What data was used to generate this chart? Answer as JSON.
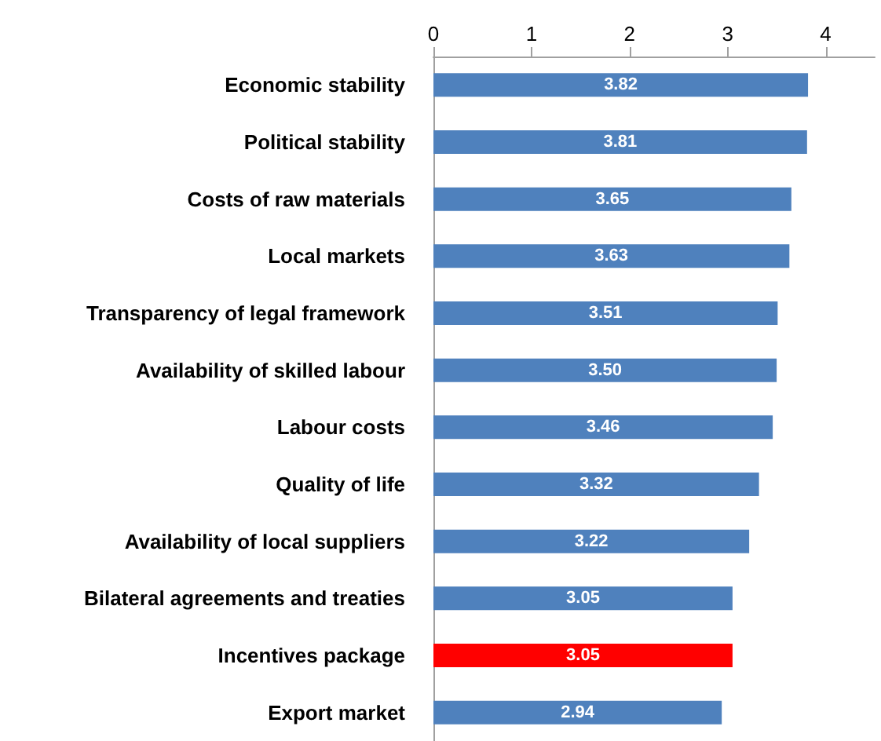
{
  "chart_data": {
    "type": "bar",
    "orientation": "horizontal",
    "categories": [
      "Economic stability",
      "Political stability",
      "Costs of raw materials",
      "Local markets",
      "Transparency of legal framework",
      "Availability of skilled labour",
      "Labour costs",
      "Quality of life",
      "Availability of local suppliers",
      "Bilateral agreements and treaties",
      "Incentives package",
      "Export market"
    ],
    "values": [
      3.82,
      3.81,
      3.65,
      3.63,
      3.51,
      3.5,
      3.46,
      3.32,
      3.22,
      3.05,
      3.05,
      2.94
    ],
    "value_labels": [
      "3.82",
      "3.81",
      "3.65",
      "3.63",
      "3.51",
      "3.50",
      "3.46",
      "3.32",
      "3.22",
      "3.05",
      "3.05",
      "2.94"
    ],
    "colors": [
      "#4f81bd",
      "#4f81bd",
      "#4f81bd",
      "#4f81bd",
      "#4f81bd",
      "#4f81bd",
      "#4f81bd",
      "#4f81bd",
      "#4f81bd",
      "#4f81bd",
      "#ff0000",
      "#4f81bd"
    ],
    "xlim": [
      0,
      4.5
    ],
    "xticks": [
      0,
      1,
      2,
      3,
      4
    ],
    "grid": false
  }
}
